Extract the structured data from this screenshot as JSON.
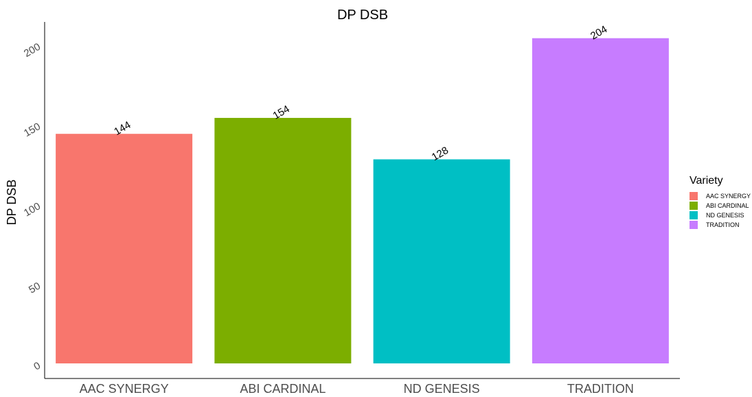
{
  "chart_data": {
    "type": "bar",
    "title": "DP DSB",
    "xlabel": "",
    "ylabel": "DP DSB",
    "categories": [
      "AAC SYNERGY",
      "ABI CARDINAL",
      "ND GENESIS",
      "TRADITION"
    ],
    "values": [
      144,
      154,
      128,
      204
    ],
    "data_labels": [
      "144",
      "154",
      "128",
      "204"
    ],
    "colors": [
      "#F8766D",
      "#7CAE00",
      "#00BFC4",
      "#C77CFF"
    ],
    "yticks": [
      0,
      50,
      100,
      150,
      200
    ],
    "ylim": [
      0,
      220
    ],
    "grid": false,
    "legend": {
      "title": "Variety",
      "position": "right",
      "entries": [
        "AAC SYNERGY",
        "ABI CARDINAL",
        "ND GENESIS",
        "TRADITION"
      ]
    }
  }
}
